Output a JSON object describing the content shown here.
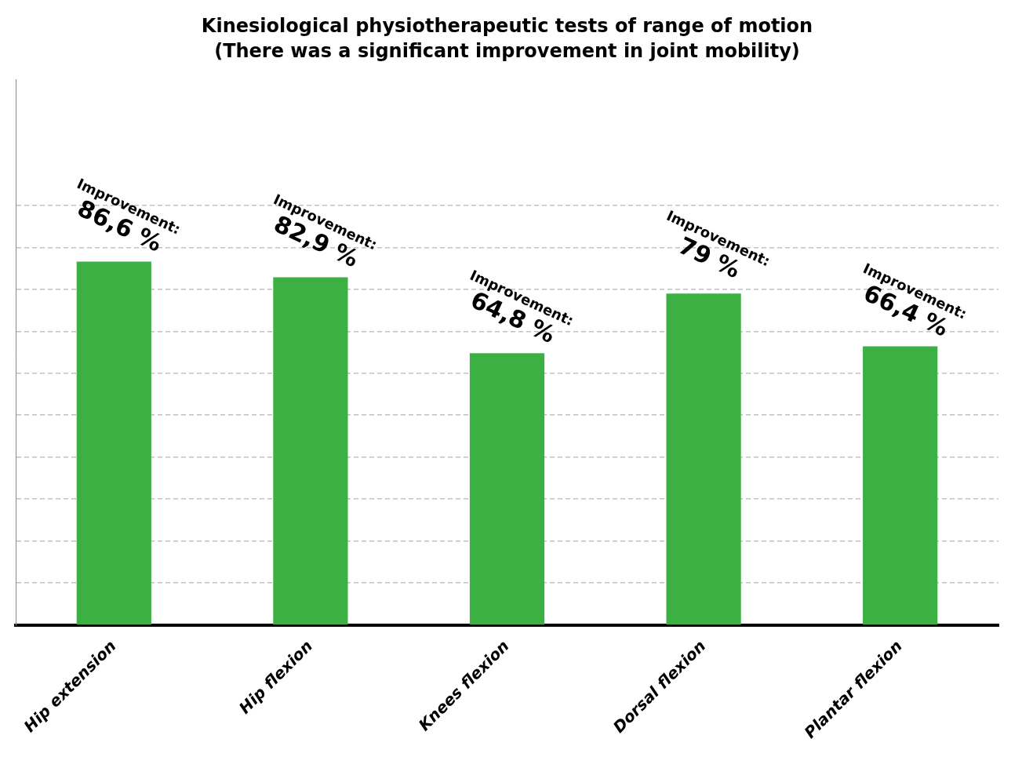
{
  "chart_data": {
    "type": "bar",
    "title": "Kinesiological physiotherapeutic tests of range of motion",
    "subtitle": "(There was a significant improvement in joint mobility)",
    "categories": [
      "Hip extension",
      "Hip flexion",
      "Knees flexion",
      "Dorsal flexion",
      "Plantar flexion"
    ],
    "values": [
      86.6,
      82.9,
      64.8,
      79.0,
      66.4
    ],
    "value_labels": [
      "86,6 %",
      "82,9 %",
      "64,8 %",
      "79 %",
      "66,4 %"
    ],
    "data_labels": true,
    "annotations": [
      "Improvement:"
    ],
    "color": "#3CB043",
    "ylim": [
      0,
      130
    ],
    "yticks": [
      10,
      20,
      30,
      40,
      50,
      60,
      70,
      80,
      90,
      100
    ],
    "grid": true,
    "tick_labels": "x"
  }
}
